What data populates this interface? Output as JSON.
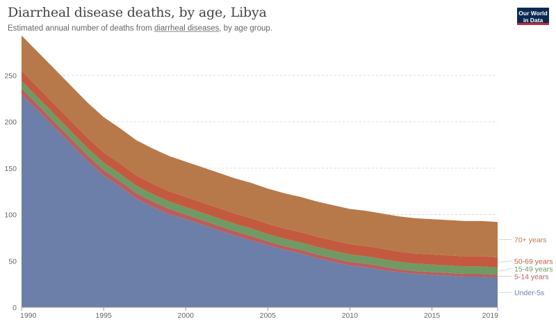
{
  "header": {
    "title": "Diarrheal disease deaths, by age, Libya",
    "subtitle_prefix": "Estimated annual number of deaths from ",
    "subtitle_link": "diarrheal diseases",
    "subtitle_suffix": ", by age group."
  },
  "logo": {
    "line1": "Our World",
    "line2": "in Data"
  },
  "chart_data": {
    "type": "area",
    "stacked": true,
    "title": "Diarrheal disease deaths, by age, Libya",
    "xlabel": "",
    "ylabel": "",
    "xlim": [
      1990,
      2019
    ],
    "ylim": [
      0,
      290
    ],
    "grid": "horizontal dashed",
    "legend_placement": "right",
    "x": [
      1990,
      1991,
      1992,
      1993,
      1994,
      1995,
      1996,
      1997,
      1998,
      1999,
      2000,
      2001,
      2002,
      2003,
      2004,
      2005,
      2006,
      2007,
      2008,
      2009,
      2010,
      2011,
      2012,
      2013,
      2014,
      2015,
      2016,
      2017,
      2018,
      2019
    ],
    "x_ticks": [
      "1990",
      "1995",
      "2000",
      "2005",
      "2010",
      "2015",
      "2019"
    ],
    "y_ticks": [
      "0",
      "50",
      "100",
      "150",
      "200",
      "250"
    ],
    "series": [
      {
        "name": "Under-5s",
        "color": "#6b7fa8",
        "values": [
          229,
          212,
          194,
          176,
          158,
          142,
          130,
          117,
          108,
          100,
          95,
          89,
          83,
          77,
          72,
          67,
          62,
          58,
          53,
          49,
          45,
          43,
          40,
          38,
          36,
          35,
          34,
          33,
          33,
          32
        ]
      },
      {
        "name": "5-14 years",
        "color": "#b75f5f",
        "values": [
          236,
          218,
          200,
          182,
          164,
          148,
          136,
          123,
          114,
          106,
          100,
          94,
          88,
          82,
          77,
          71,
          66,
          62,
          57,
          53,
          49,
          47,
          44,
          41,
          39,
          38,
          37,
          36,
          36,
          35
        ]
      },
      {
        "name": "15-49 years",
        "color": "#6f9a63",
        "values": [
          244,
          226,
          208,
          190,
          172,
          156,
          144,
          131,
          122,
          114,
          108,
          102,
          96,
          90,
          85,
          79,
          74,
          70,
          65,
          61,
          57,
          55,
          52,
          49,
          47,
          46,
          45,
          44,
          44,
          43
        ]
      },
      {
        "name": "50-69 years",
        "color": "#c35a40",
        "values": [
          255,
          237,
          219,
          201,
          183,
          167,
          155,
          142,
          133,
          125,
          119,
          113,
          107,
          101,
          96,
          90,
          85,
          81,
          76,
          72,
          68,
          66,
          63,
          60,
          58,
          57,
          56,
          55,
          55,
          54
        ]
      },
      {
        "name": "70+ years",
        "color": "#b8794a",
        "values": [
          293,
          275,
          257,
          239,
          221,
          205,
          193,
          180,
          171,
          163,
          157,
          151,
          145,
          139,
          134,
          128,
          123,
          119,
          114,
          110,
          106,
          104,
          101,
          98,
          96,
          95,
          94,
          93,
          93,
          92
        ]
      }
    ]
  }
}
